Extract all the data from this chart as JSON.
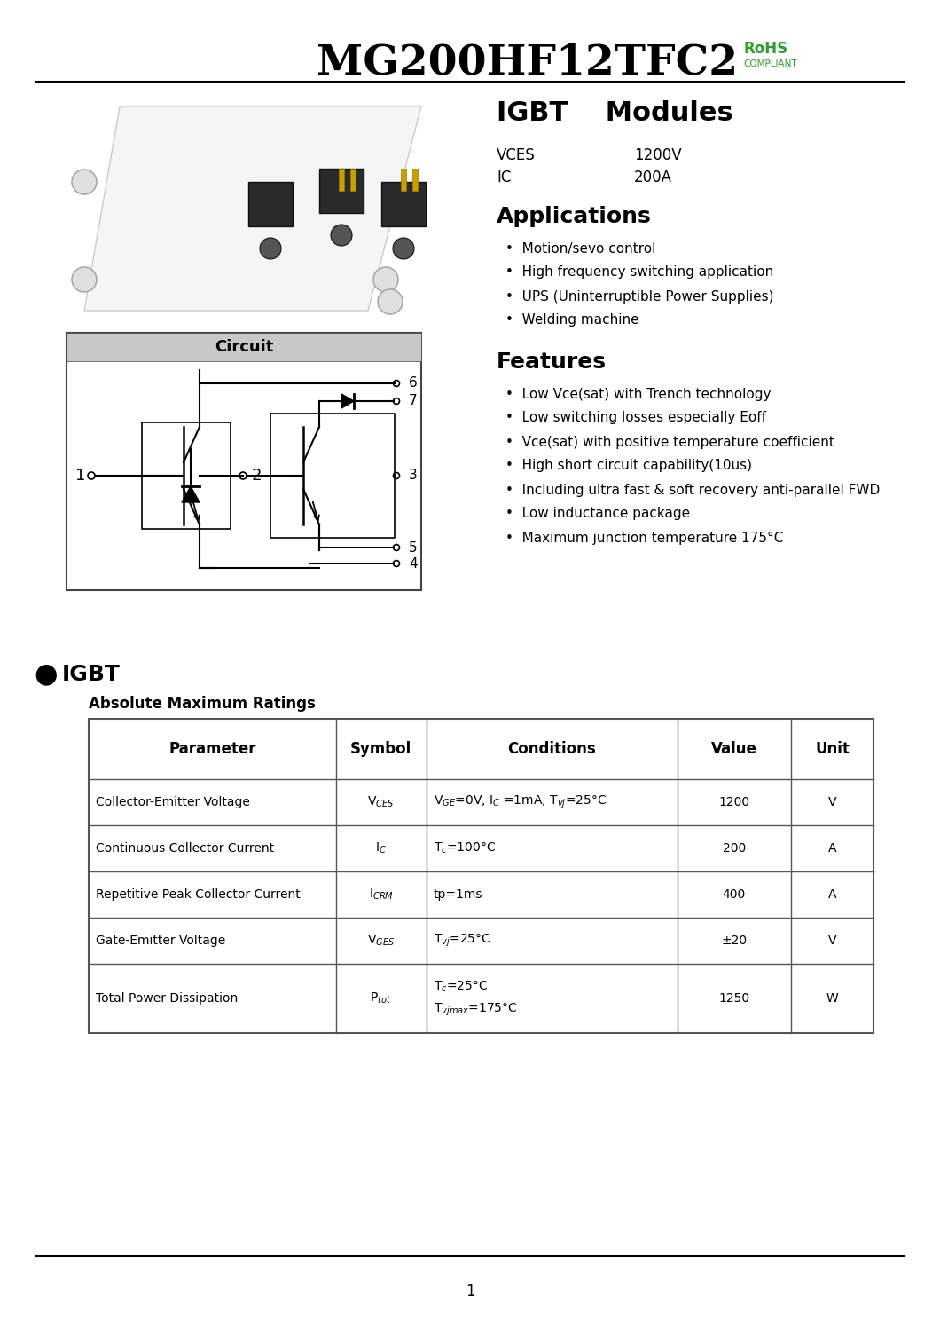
{
  "title": "MG200HF12TFC2",
  "rohs_line1": "RoHS",
  "rohs_line2": "COMPLIANT",
  "product_type_1": "IGBT",
  "product_type_2": "Modules",
  "vces_label": "VCES",
  "vces_val": "1200V",
  "ic_label": "IC",
  "ic_val": "200A",
  "applications_title": "Applications",
  "applications": [
    "Motion/sevo control",
    "High frequency switching application",
    "UPS (Uninterruptible Power Supplies)",
    "Welding machine"
  ],
  "features_title": "Features",
  "features": [
    "Low Vce(sat) with Trench technology",
    "Low switching losses especially Eoff",
    "Vce(sat) with positive temperature coefficient",
    "High short circuit capability(10us)",
    "Including ultra fast & soft recovery anti-parallel FWD",
    "Low inductance package",
    "Maximum junction temperature 175°C"
  ],
  "circuit_title": "Circuit",
  "igbt_section": "IGBT",
  "ratings_title": "Absolute Maximum Ratings",
  "table_headers": [
    "Parameter",
    "Symbol",
    "Conditions",
    "Value",
    "Unit"
  ],
  "table_rows": [
    [
      "Collector-Emitter Voltage",
      "VCES",
      "VGE=0V, IC =1mA, Tvj=25°C",
      "1200",
      "V"
    ],
    [
      "Continuous Collector Current",
      "IC",
      "Tc=100°C",
      "200",
      "A"
    ],
    [
      "Repetitive Peak Collector Current",
      "ICRM",
      "tp=1ms",
      "400",
      "A"
    ],
    [
      "Gate-Emitter Voltage",
      "VGES",
      "Tvj=25°C",
      "±20",
      "V"
    ],
    [
      "Total Power Dissipation",
      "Ptot",
      "Tc=25°C\nTvjmax=175°C",
      "1250",
      "W"
    ]
  ],
  "page_number": "1",
  "bg_color": "#ffffff",
  "rohs_color": "#2ca02c",
  "table_line_color": "#555555"
}
